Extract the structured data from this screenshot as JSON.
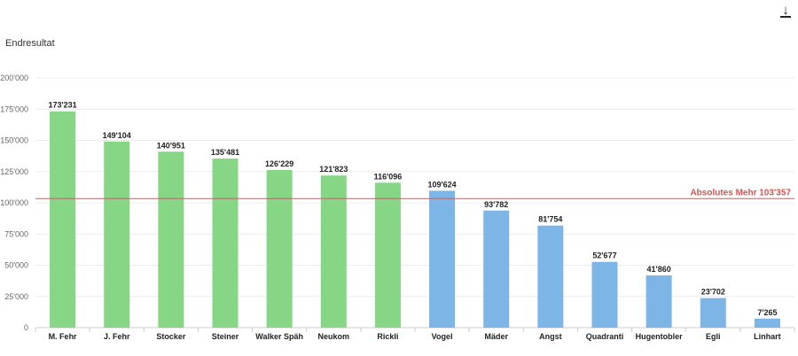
{
  "header": {
    "title": "Endresultat",
    "download_icon": "download-icon"
  },
  "colors": {
    "group_a": "#86d686",
    "group_b": "#7cb5e6",
    "reference": "#d9534f"
  },
  "chart_data": {
    "type": "bar",
    "categories": [
      "M. Fehr",
      "J. Fehr",
      "Stocker",
      "Steiner",
      "Walker Späh",
      "Neukom",
      "Rickli",
      "Vogel",
      "Mäder",
      "Angst",
      "Quadranti",
      "Hugentobler",
      "Egli",
      "Linhart"
    ],
    "values": [
      173231,
      149104,
      140951,
      135481,
      126229,
      121823,
      116096,
      109624,
      93782,
      81754,
      52677,
      41860,
      23702,
      7265
    ],
    "data_labels": [
      "173'231",
      "149'104",
      "140'951",
      "135'481",
      "126'229",
      "121'823",
      "116'096",
      "109'624",
      "93'782",
      "81'754",
      "52'677",
      "41'860",
      "23'702",
      "7'265"
    ],
    "groups": [
      "a",
      "a",
      "a",
      "a",
      "a",
      "a",
      "a",
      "b",
      "b",
      "b",
      "b",
      "b",
      "b",
      "b"
    ],
    "title": "Endresultat",
    "xlabel": "",
    "ylabel": "",
    "ylim": [
      0,
      200000
    ],
    "yticks": [
      0,
      25000,
      50000,
      75000,
      100000,
      125000,
      150000,
      175000,
      200000
    ],
    "ytick_labels": [
      "0",
      "25'000",
      "50'000",
      "75'000",
      "100'000",
      "125'000",
      "150'000",
      "175'000",
      "200'000"
    ],
    "reference_line": {
      "value": 103357,
      "label": "Absolutes Mehr 103'357"
    },
    "grid": true,
    "legend": "none"
  }
}
